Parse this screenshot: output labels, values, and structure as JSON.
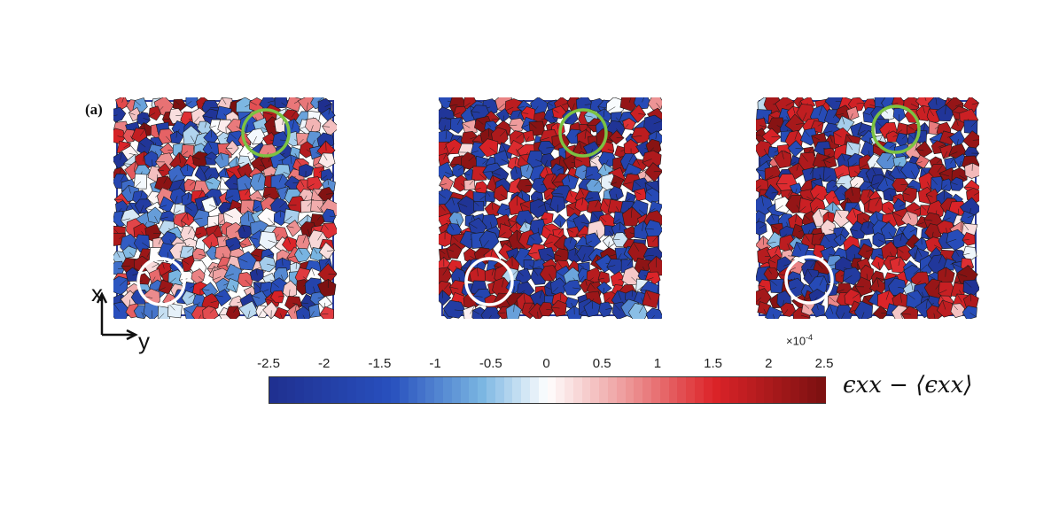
{
  "figure": {
    "panel_label": "(a)",
    "axis_x_label": "x",
    "axis_y_label": "y",
    "panels": [
      {
        "id": "panel-1",
        "dominant": "mixed"
      },
      {
        "id": "panel-2",
        "dominant": "saturated"
      },
      {
        "id": "panel-3",
        "dominant": "saturated"
      }
    ],
    "colorbar": {
      "ticks": [
        "-2.5",
        "-2",
        "-1.5",
        "-1",
        "-0.5",
        "0",
        "0.5",
        "1",
        "1.5",
        "2",
        "2.5"
      ],
      "tick_values": [
        -2.5,
        -2,
        -1.5,
        -1,
        -0.5,
        0,
        0.5,
        1,
        1.5,
        2,
        2.5
      ],
      "range": [
        -2.5,
        2.5
      ],
      "exponent": "×10",
      "exponent_power": "-4",
      "label": "ϵxx − ⟨ϵxx⟩",
      "colors": {
        "min": "#1f2f8f",
        "mid": "#ffffff",
        "max": "#7a1010"
      }
    },
    "highlight_colors": {
      "green": "#7cc242",
      "white": "#ffffff"
    }
  }
}
